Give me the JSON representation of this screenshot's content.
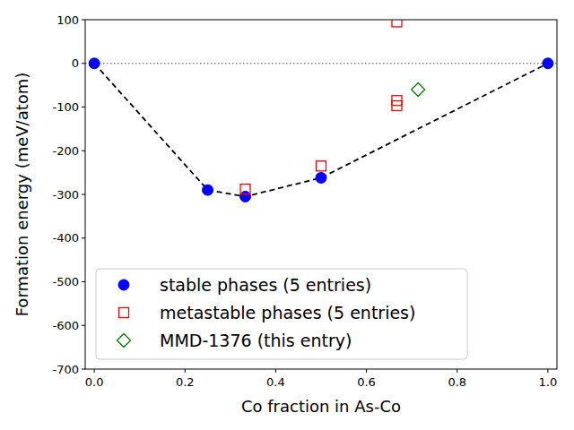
{
  "chart_data": {
    "type": "scatter",
    "x_label": "Co fraction in As-Co",
    "y_label": "Formation energy (meV/atom)",
    "xlim": [
      -0.02,
      1.02
    ],
    "ylim": [
      -700,
      100
    ],
    "xticks": [
      {
        "value": 0,
        "label": "0.0"
      },
      0.2,
      0.4,
      0.6,
      0.8,
      {
        "value": 1,
        "label": "1.0"
      }
    ],
    "yticks": [
      -700,
      -600,
      -500,
      -400,
      -300,
      -200,
      -100,
      0,
      100
    ],
    "hline": 0,
    "grid": false,
    "legend": "lower left",
    "series": [
      {
        "name": "stable phases (5 entries)",
        "color": "#0000ff",
        "marker": "circle",
        "line_style": "dashed",
        "x": [
          0,
          0.25,
          0.333,
          0.5,
          1
        ],
        "values": [
          0,
          -290,
          -305,
          -262,
          0
        ]
      },
      {
        "name": "metastable phases (5 entries)",
        "color": "#ff0000",
        "marker": "square",
        "line_style": "none",
        "x": [
          0.333,
          0.5,
          0.667,
          0.667,
          0.667
        ],
        "values": [
          -288,
          -235,
          95,
          -85,
          -97
        ]
      },
      {
        "name": "MMD-1376 (this entry)",
        "color": "#008000",
        "marker": "diamond",
        "line_style": "none",
        "x": [
          0.714
        ],
        "values": [
          -60
        ]
      }
    ]
  }
}
